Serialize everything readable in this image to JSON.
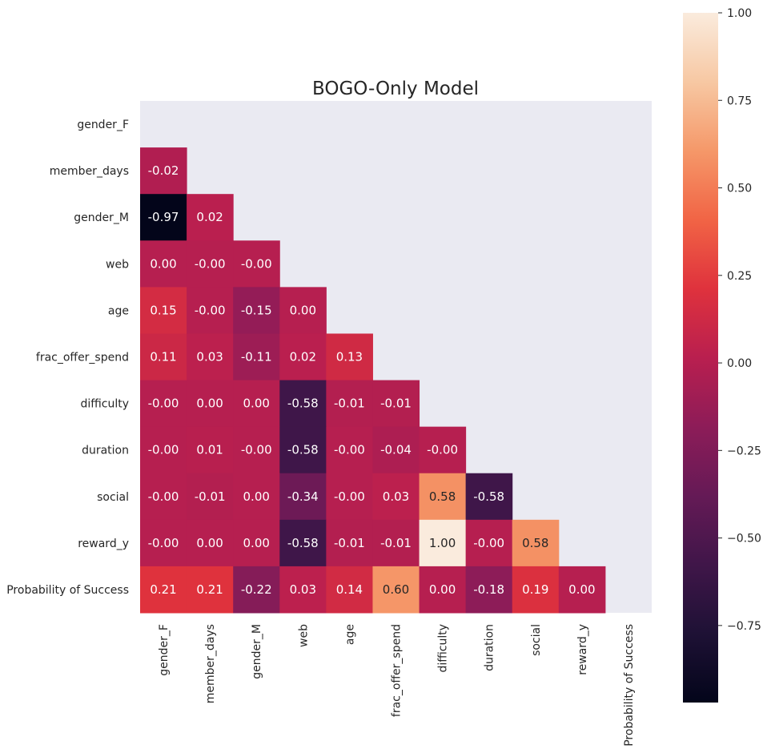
{
  "chart_data": {
    "type": "heatmap",
    "title": "BOGO-Only Model",
    "labels": [
      "gender_F",
      "member_days",
      "gender_M",
      "web",
      "age",
      "frac_offer_spend",
      "difficulty",
      "duration",
      "social",
      "reward_y",
      "Probability of Success"
    ],
    "mask": "upper triangle including diagonal",
    "matrix": [
      [
        null,
        null,
        null,
        null,
        null,
        null,
        null,
        null,
        null,
        null,
        null
      ],
      [
        -0.02,
        null,
        null,
        null,
        null,
        null,
        null,
        null,
        null,
        null,
        null
      ],
      [
        -0.97,
        0.02,
        null,
        null,
        null,
        null,
        null,
        null,
        null,
        null,
        null
      ],
      [
        0.0,
        -0.0,
        -0.0,
        null,
        null,
        null,
        null,
        null,
        null,
        null,
        null
      ],
      [
        0.15,
        -0.0,
        -0.15,
        0.0,
        null,
        null,
        null,
        null,
        null,
        null,
        null
      ],
      [
        0.11,
        0.03,
        -0.11,
        0.02,
        0.13,
        null,
        null,
        null,
        null,
        null,
        null
      ],
      [
        -0.0,
        0.0,
        0.0,
        -0.58,
        -0.01,
        -0.01,
        null,
        null,
        null,
        null,
        null
      ],
      [
        -0.0,
        0.01,
        -0.0,
        -0.58,
        -0.0,
        -0.04,
        -0.0,
        null,
        null,
        null,
        null
      ],
      [
        -0.0,
        -0.01,
        0.0,
        -0.34,
        -0.0,
        0.03,
        0.58,
        -0.58,
        null,
        null,
        null
      ],
      [
        -0.0,
        0.0,
        0.0,
        -0.58,
        -0.01,
        -0.01,
        1.0,
        -0.0,
        0.58,
        null,
        null
      ],
      [
        0.21,
        0.21,
        -0.22,
        0.03,
        0.14,
        0.6,
        0.0,
        -0.18,
        0.19,
        0.0,
        null
      ]
    ],
    "value_format": "2 decimals",
    "colormap": "rocket",
    "colorbar": {
      "range": [
        -0.97,
        1.0
      ],
      "ticks": [
        1.0,
        0.75,
        0.5,
        0.25,
        0.0,
        -0.25,
        -0.5,
        -0.75
      ],
      "tick_labels": [
        "1.00",
        "0.75",
        "0.50",
        "0.25",
        "0.00",
        "−0.25",
        "−0.50",
        "−0.75"
      ]
    },
    "background_color": "#eaeaf2",
    "grid": false
  }
}
